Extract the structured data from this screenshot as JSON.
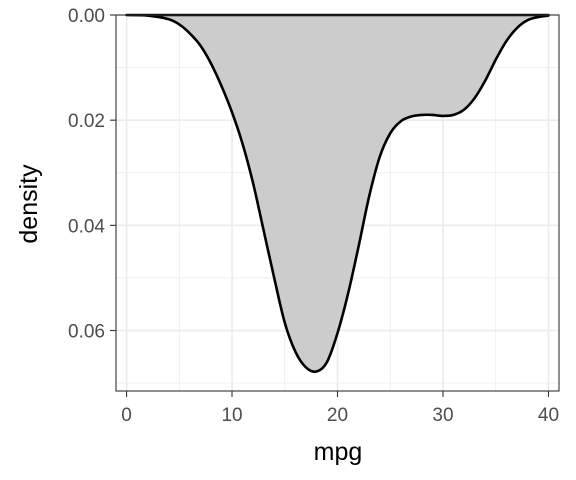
{
  "chart_data": {
    "type": "area",
    "title": "",
    "xlabel": "mpg",
    "ylabel": "density",
    "xlim": [
      -1,
      41
    ],
    "ylim": [
      0,
      0.0715
    ],
    "y_axis_reversed": true,
    "x_ticks": [
      0,
      10,
      20,
      30,
      40
    ],
    "x_tick_labels": [
      "0",
      "10",
      "20",
      "30",
      "40"
    ],
    "y_ticks": [
      0.0,
      0.02,
      0.04,
      0.06
    ],
    "y_tick_labels": [
      "0.00",
      "0.02",
      "0.04",
      "0.06"
    ],
    "grid": true,
    "series": [
      {
        "fill": "#cccccc",
        "line_color": "#000000",
        "x": [
          0,
          2,
          4,
          5,
          6,
          7,
          8,
          9,
          10,
          11,
          12,
          13,
          14,
          15,
          16,
          17,
          18,
          19,
          20,
          21,
          22,
          23,
          24,
          25,
          26,
          27,
          28,
          29,
          30,
          31,
          32,
          33,
          34,
          35,
          36,
          37,
          38,
          39,
          40
        ],
        "y": [
          0.0,
          0.0001,
          0.0008,
          0.0018,
          0.0035,
          0.0058,
          0.0092,
          0.0135,
          0.0185,
          0.0245,
          0.032,
          0.041,
          0.05,
          0.0585,
          0.064,
          0.067,
          0.0678,
          0.066,
          0.0605,
          0.053,
          0.044,
          0.0345,
          0.027,
          0.0225,
          0.0202,
          0.0193,
          0.019,
          0.019,
          0.0192,
          0.019,
          0.018,
          0.0158,
          0.0125,
          0.0085,
          0.005,
          0.0025,
          0.001,
          0.0004,
          0.0001
        ]
      }
    ]
  }
}
